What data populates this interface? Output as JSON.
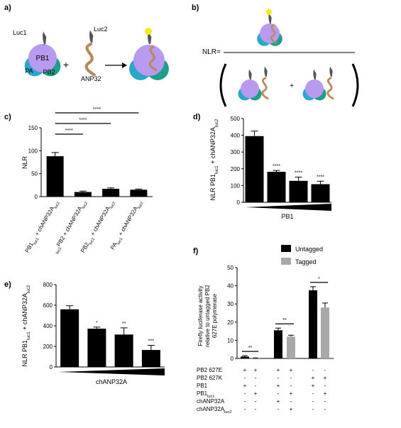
{
  "panels": {
    "a": {
      "letter": "a)",
      "labels": {
        "luc1": "Luc1",
        "luc2": "Luc2",
        "pb1": "PB1",
        "pa": "PA",
        "pb2": "PB2",
        "anp32": "ANP32",
        "plus": "+"
      }
    },
    "b": {
      "letter": "b)",
      "formula_lhs": "NLR=",
      "plus": "+"
    }
  },
  "colors": {
    "pb1": "#b89af0",
    "pa": "#2aa7c9",
    "pb2": "#1f9f87",
    "anp32": "#b88a5a",
    "luc": "#555555",
    "glow": "#f6ea1f",
    "black_bar": "#000000",
    "grey_bar": "#a8a8a8"
  },
  "chart_data": [
    {
      "panel": "c)",
      "type": "bar",
      "ylabel": "NLR",
      "ylim": [
        0,
        150
      ],
      "yticks": [
        "0",
        "50",
        "100",
        "150"
      ],
      "categories": [
        {
          "pre": "PB1",
          "sub": "luc1",
          "post": " + chANP32A",
          "sub2": "luc2"
        },
        {
          "pre": "",
          "sub": "luc1",
          "post": "PB2 + chANP32A",
          "sub2": "luc2"
        },
        {
          "pre": "PB2",
          "sub": "luc1",
          "post": " + chANP32A",
          "sub2": "luc2"
        },
        {
          "pre": "PA",
          "sub": "luc1",
          "post": " + chANP32A",
          "sub2": "luc2"
        }
      ],
      "values": [
        88,
        10,
        17,
        15
      ],
      "errors": [
        8,
        2,
        2,
        1.5
      ],
      "significance": [
        "****",
        "****",
        "****"
      ]
    },
    {
      "panel": "d)",
      "type": "bar",
      "ylabel": {
        "t1": "NLR PB1",
        "s1": "luc1",
        "t2": " + chANP32A",
        "s2": "luc2"
      },
      "xlabel": "PB1",
      "ylim": [
        0,
        500
      ],
      "yticks": [
        "0",
        "100",
        "200",
        "300",
        "400",
        "500"
      ],
      "values": [
        395,
        182,
        128,
        108
      ],
      "errors": [
        30,
        8,
        22,
        18
      ],
      "significance": [
        "",
        "****",
        "****",
        "****"
      ]
    },
    {
      "panel": "e)",
      "type": "bar",
      "ylabel": {
        "t1": "NLR PB1",
        "s1": "luc1",
        "t2": " + chANP32A",
        "s2": "luc2"
      },
      "xlabel": "chANP32A",
      "ylim": [
        0,
        800
      ],
      "yticks": [
        "0",
        "200",
        "400",
        "600",
        "800"
      ],
      "values": [
        560,
        372,
        315,
        165
      ],
      "errors": [
        35,
        15,
        65,
        45
      ],
      "significance": [
        "",
        "*",
        "**",
        "***"
      ]
    },
    {
      "panel": "f)",
      "type": "bar",
      "ylabel": [
        "Firefly  luciferase activity",
        "relative to untagged PB2",
        "627E polymerase"
      ],
      "ylim": [
        0,
        50
      ],
      "yticks": [
        "0",
        "10",
        "20",
        "30",
        "40",
        "50"
      ],
      "series": [
        {
          "name": "Untagged",
          "values": [
            1,
            15.5,
            37.5
          ],
          "errors": [
            0.5,
            1.2,
            2
          ]
        },
        {
          "name": "Tagged",
          "values": [
            0.2,
            12,
            28
          ],
          "errors": [
            0.1,
            0.8,
            2.5
          ]
        }
      ],
      "significance": [
        "**",
        "**",
        "*"
      ],
      "table": {
        "rows": [
          {
            "label": "PB2 627E",
            "sub": "",
            "cells": [
              "+",
              "+",
              "+",
              "+",
              "-",
              "-"
            ]
          },
          {
            "label": "PB2 627K",
            "sub": "",
            "cells": [
              "-",
              "-",
              "-",
              "-",
              "+",
              "+"
            ]
          },
          {
            "label": "PB1",
            "sub": "",
            "cells": [
              "+",
              "-",
              "+",
              "-",
              "+",
              "-"
            ]
          },
          {
            "label": "PB1",
            "sub": "luc1",
            "cells": [
              "-",
              "+",
              "-",
              "+",
              "-",
              "+"
            ]
          },
          {
            "label": "chANP32A",
            "sub": "",
            "cells": [
              "-",
              "-",
              "+",
              "-",
              "-",
              "-"
            ]
          },
          {
            "label": "chANP32A",
            "sub": "luc2",
            "cells": [
              "-",
              "-",
              "-",
              "+",
              "-",
              "-"
            ]
          }
        ]
      }
    }
  ]
}
